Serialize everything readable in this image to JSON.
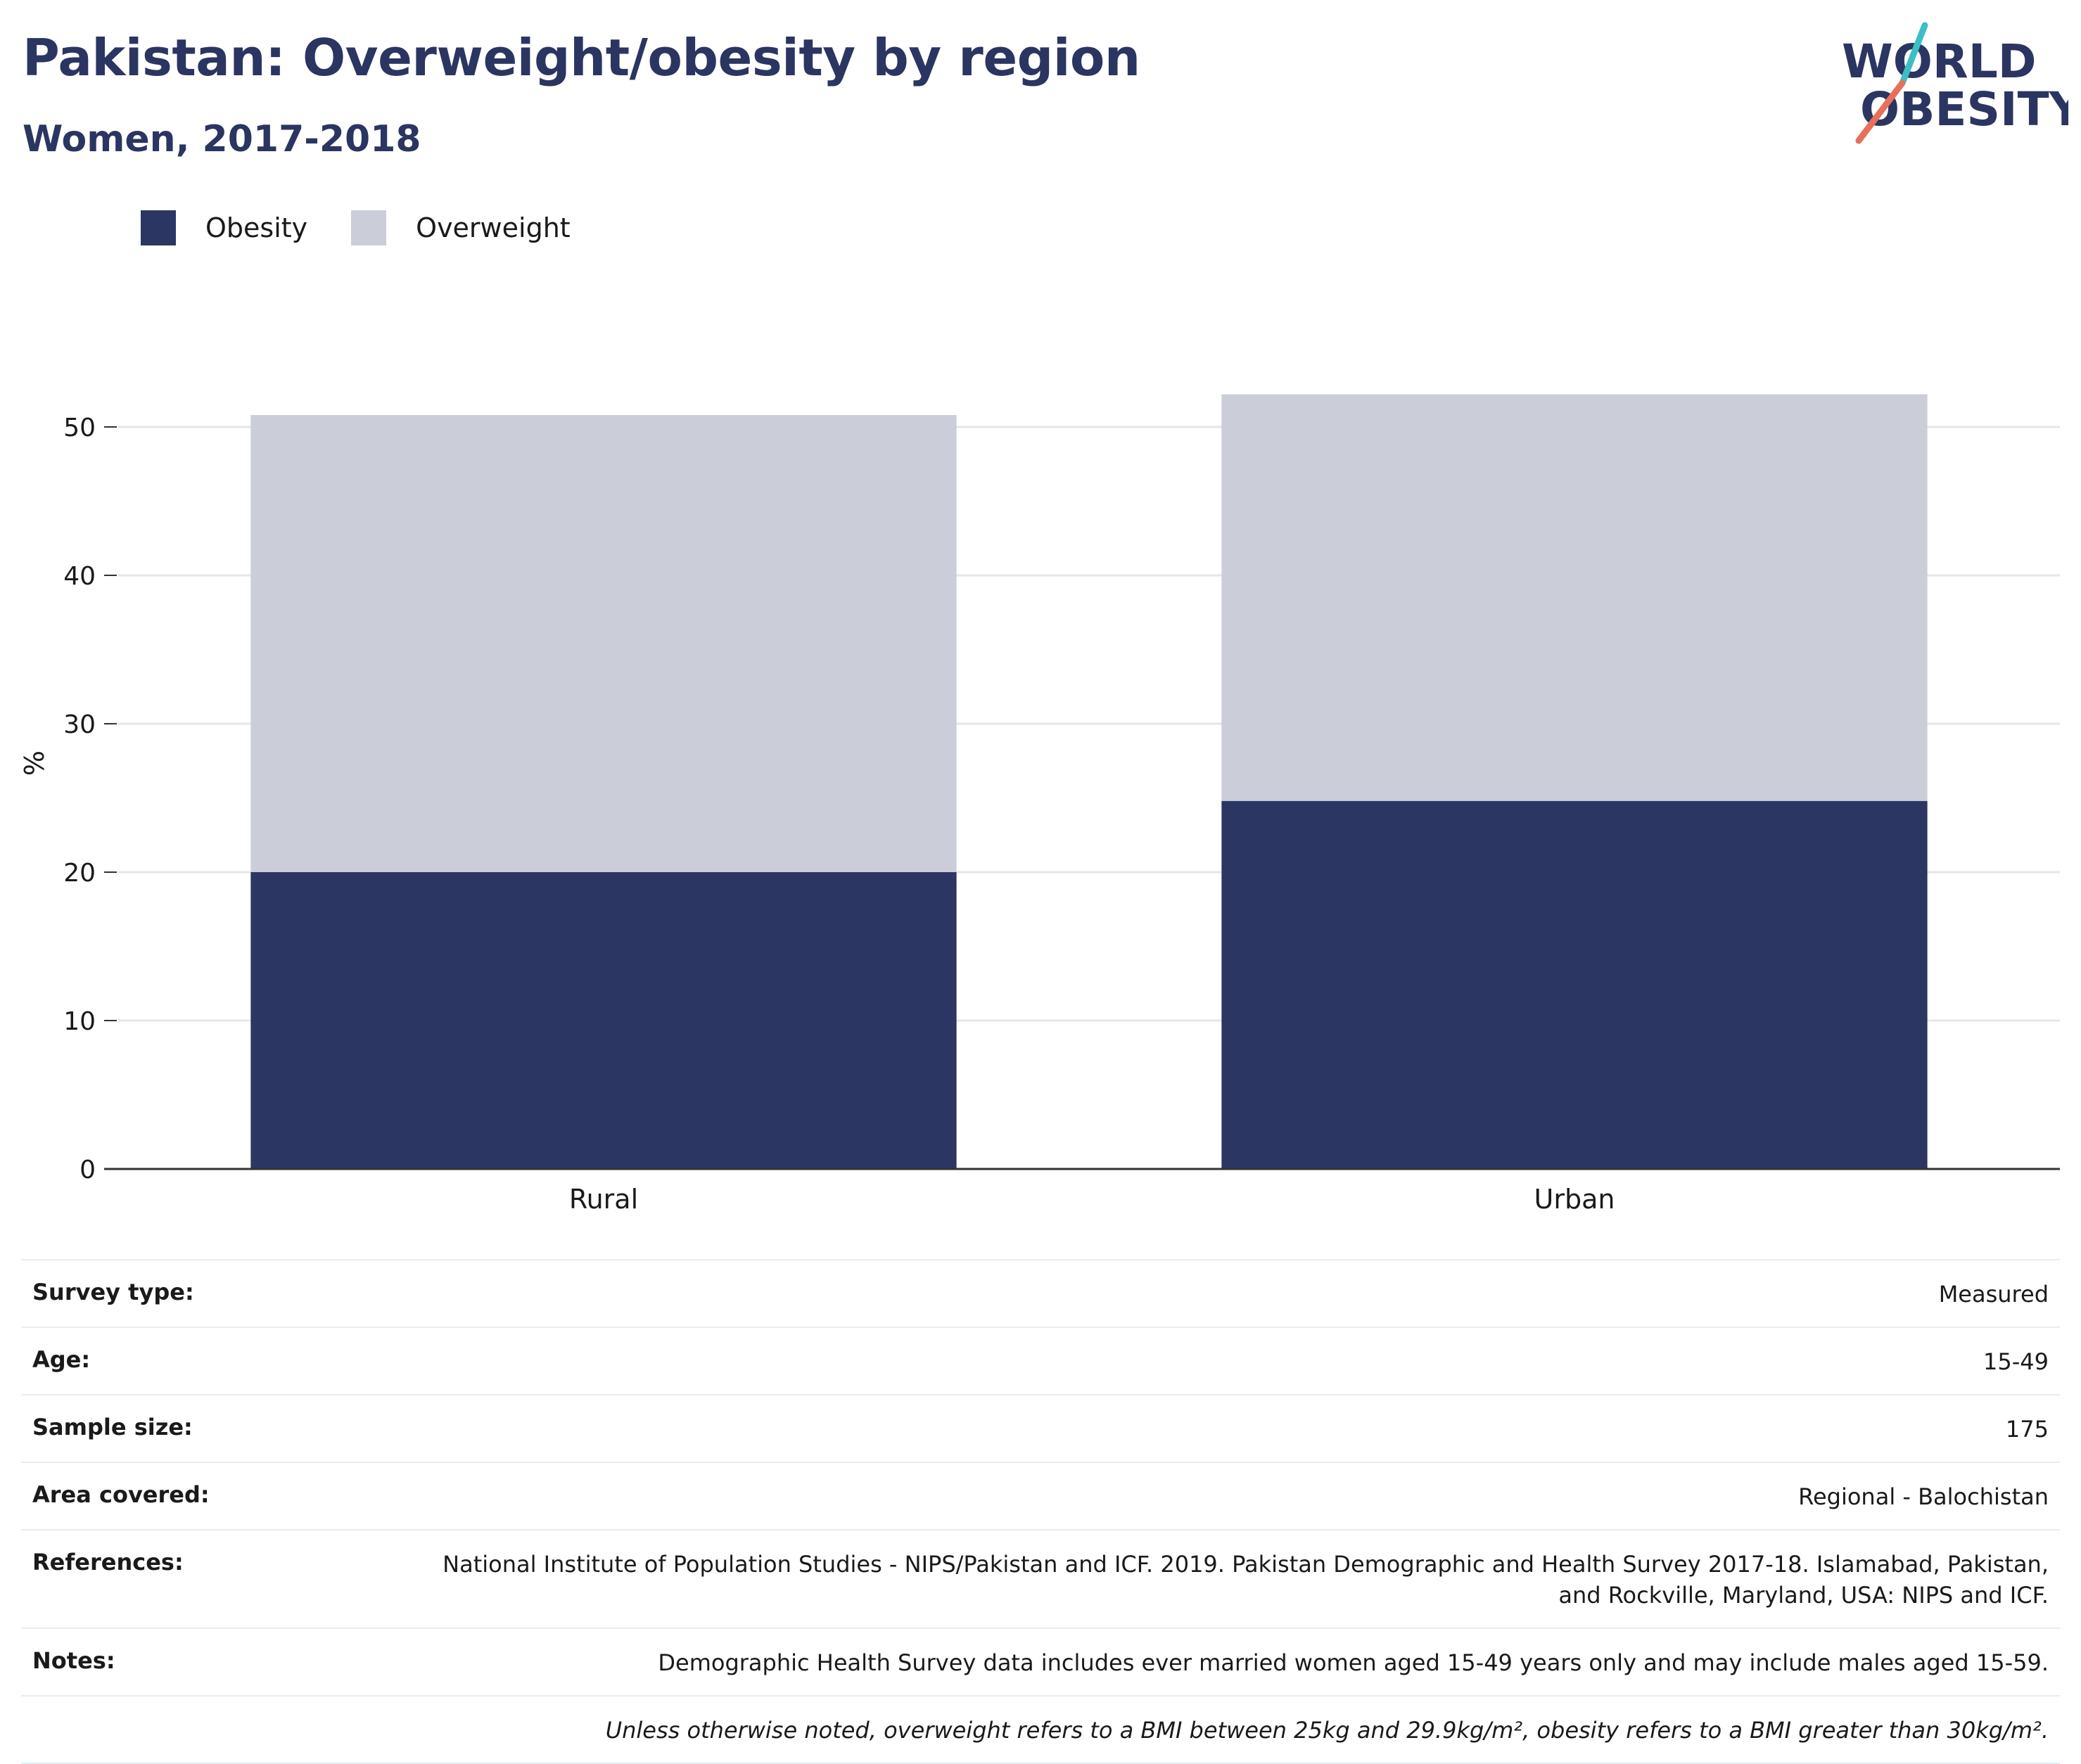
{
  "header": {
    "title": "Pakistan: Overweight/obesity by region",
    "subtitle": "Women, 2017-2018"
  },
  "logo": {
    "line1": "WORLD",
    "line2": "OBESITY",
    "accent_colors": [
      "#3bbfc5",
      "#e8705a"
    ]
  },
  "colors": {
    "obesity": "#2b3663",
    "overweight": "#cbcdd9",
    "axis": "#333333",
    "grid": "#e6e6e6"
  },
  "chart_data": {
    "type": "bar",
    "stacked": true,
    "categories": [
      "Rural",
      "Urban"
    ],
    "series": [
      {
        "name": "Obesity",
        "values": [
          20.0,
          24.8
        ]
      },
      {
        "name": "Overweight",
        "values": [
          30.8,
          27.4
        ]
      }
    ],
    "ylabel": "%",
    "ylim": [
      0,
      55
    ],
    "yticks": [
      0,
      10,
      20,
      30,
      40,
      50
    ],
    "grid": true,
    "legend_position": "top-left"
  },
  "meta": {
    "rows": [
      {
        "label": "Survey type:",
        "value": "Measured"
      },
      {
        "label": "Age:",
        "value": "15-49"
      },
      {
        "label": "Sample size:",
        "value": "175"
      },
      {
        "label": "Area covered:",
        "value": "Regional - Balochistan"
      },
      {
        "label": "References:",
        "value": "National Institute of Population Studies - NIPS/Pakistan and ICF. 2019. Pakistan Demographic and Health Survey 2017-18. Islamabad, Pakistan, and Rockville, Maryland, USA: NIPS and ICF."
      },
      {
        "label": "Notes:",
        "value": "Demographic Health Survey data includes ever married women aged 15-49 years only and may include males aged 15-59."
      }
    ],
    "footnote": "Unless otherwise noted, overweight refers to a BMI between 25kg and 29.9kg/m², obesity refers to a BMI greater than 30kg/m²."
  }
}
